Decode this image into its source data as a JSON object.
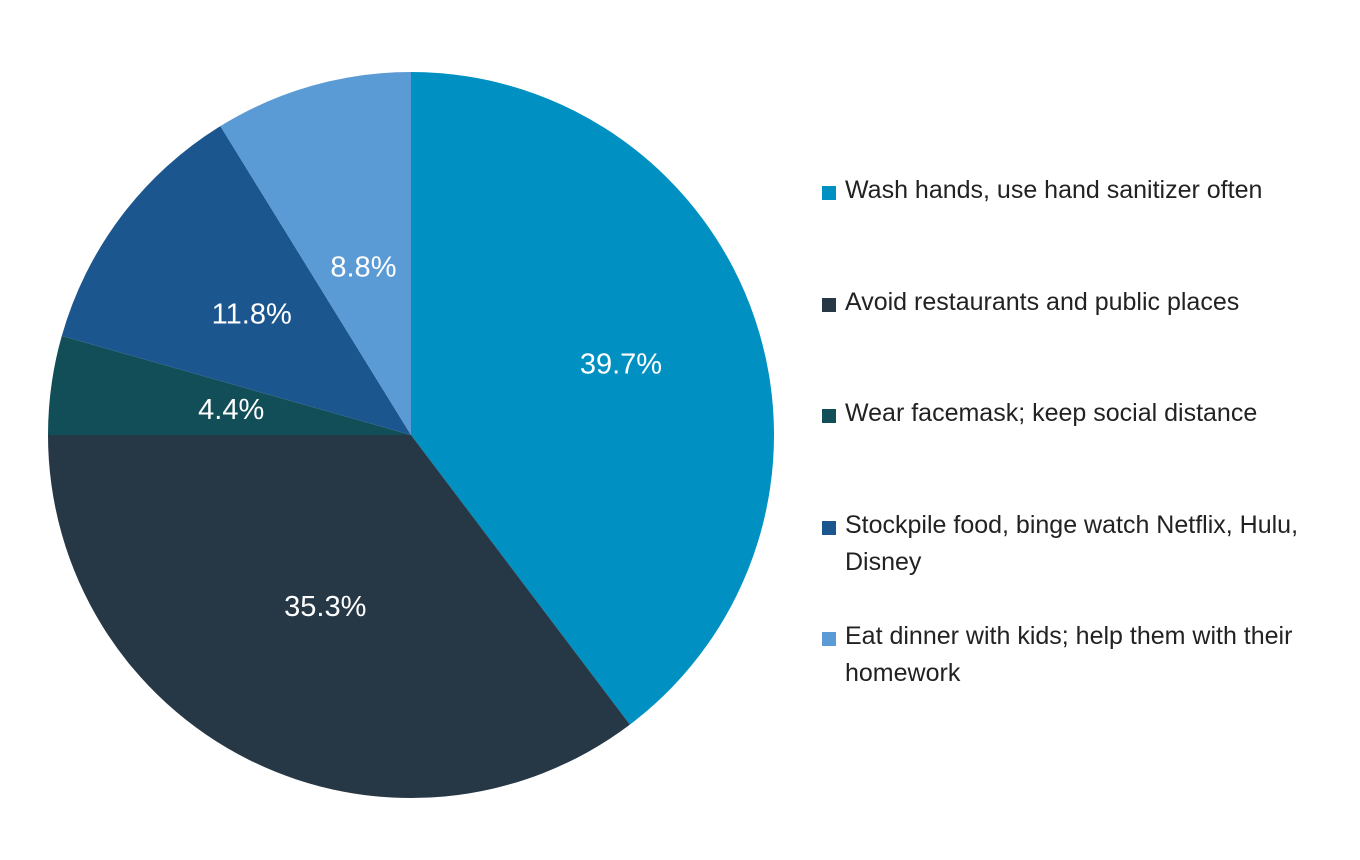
{
  "chart_data": {
    "type": "pie",
    "start_angle": "12 o'clock",
    "direction": "clockwise",
    "legend_position": "right",
    "slices": [
      {
        "label": "Wash hands, use hand sanitizer often",
        "value": 39.7,
        "value_label": "39.7%",
        "color": "#0090c1"
      },
      {
        "label": "Avoid restaurants and public places",
        "value": 35.3,
        "value_label": "35.3%",
        "color": "#263746"
      },
      {
        "label": "Wear facemask; keep social distance",
        "value": 4.4,
        "value_label": "4.4%",
        "color": "#114e58"
      },
      {
        "label": "Stockpile food, binge watch Netflix, Hulu, Disney",
        "value": 11.8,
        "value_label": "11.8%",
        "color": "#1c568f"
      },
      {
        "label": "Eat dinner with kids; help them with their homework",
        "value": 8.8,
        "value_label": "8.8%",
        "color": "#5b9bd5"
      }
    ]
  }
}
